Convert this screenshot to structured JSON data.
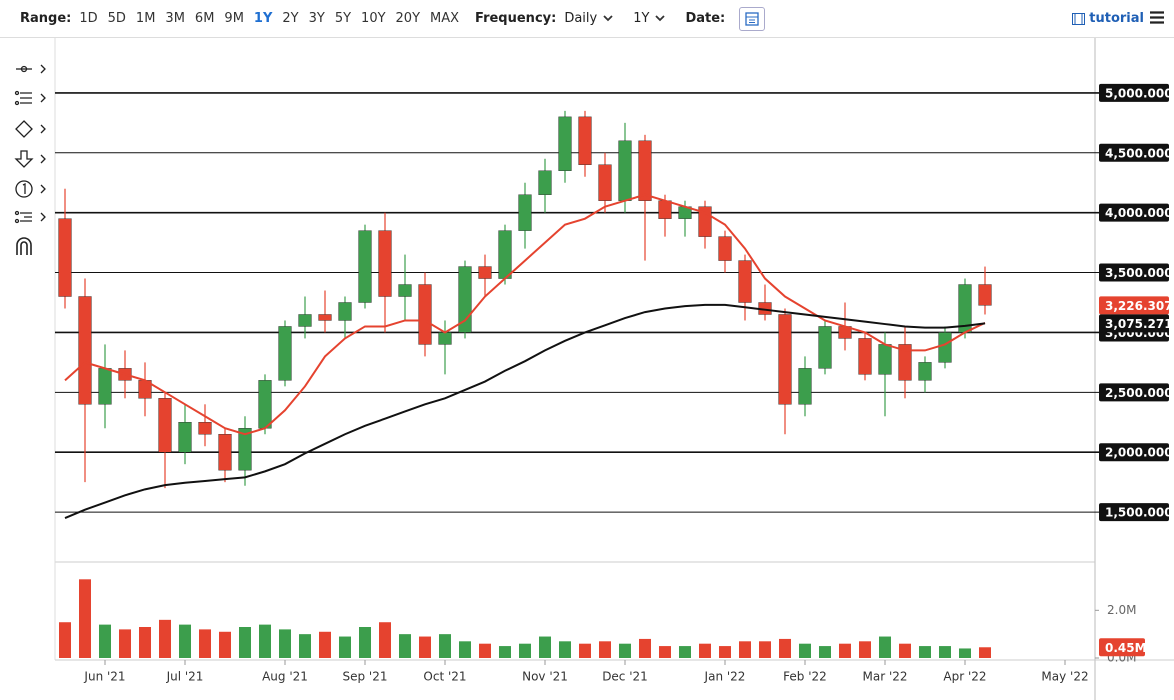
{
  "toolbar": {
    "range_label": "Range:",
    "ranges": [
      "1D",
      "5D",
      "1M",
      "3M",
      "6M",
      "9M",
      "1Y",
      "2Y",
      "3Y",
      "5Y",
      "10Y",
      "20Y",
      "MAX"
    ],
    "frequency_label": "Frequency:",
    "frequency": "Daily",
    "period": "1Y",
    "date_label": "Date:",
    "tutorial": "tutorial"
  },
  "chart_data": {
    "type": "candlestick",
    "categories": [
      null,
      null,
      "Jun '21",
      null,
      null,
      null,
      "Jul '21",
      null,
      null,
      null,
      null,
      "Aug '21",
      null,
      null,
      null,
      "Sep '21",
      null,
      null,
      null,
      "Oct '21",
      null,
      null,
      null,
      null,
      "Nov '21",
      null,
      null,
      null,
      "Dec '21",
      null,
      null,
      null,
      null,
      "Jan '22",
      null,
      null,
      null,
      "Feb '22",
      null,
      null,
      null,
      "Mar '22",
      null,
      null,
      null,
      "Apr '22",
      null,
      null,
      null,
      null,
      "May '22",
      null
    ],
    "open": [
      3950,
      3300,
      2400,
      2700,
      2600,
      2450,
      2000,
      2250,
      2150,
      1850,
      2200,
      2600,
      3050,
      3150,
      3100,
      3250,
      3850,
      3300,
      3400,
      2900,
      3000,
      3550,
      3450,
      3850,
      4150,
      4350,
      4800,
      4400,
      4100,
      4600,
      4100,
      3950,
      4050,
      3800,
      3600,
      3250,
      3150,
      2400,
      2700,
      3050,
      2950,
      2650,
      2900,
      2600,
      2750,
      3000,
      3400,
      null,
      null,
      null,
      null,
      null
    ],
    "high": [
      4200,
      3450,
      2900,
      2850,
      2750,
      2500,
      2400,
      2400,
      2200,
      2300,
      2650,
      3100,
      3300,
      3350,
      3300,
      3900,
      4000,
      3650,
      3500,
      3100,
      3600,
      3650,
      3900,
      4250,
      4450,
      4850,
      4850,
      4500,
      4750,
      4650,
      4150,
      4100,
      4100,
      3850,
      3650,
      3400,
      3200,
      2800,
      3100,
      3250,
      3000,
      3000,
      3050,
      2800,
      3050,
      3450,
      3550,
      null,
      null,
      null,
      null,
      null
    ],
    "low": [
      3200,
      1750,
      2200,
      2450,
      2300,
      1700,
      1900,
      2050,
      1750,
      1720,
      2150,
      2550,
      2950,
      3000,
      2950,
      3200,
      3000,
      3100,
      2800,
      2650,
      2950,
      3300,
      3400,
      3700,
      4000,
      4250,
      4300,
      4000,
      4000,
      3600,
      3800,
      3800,
      3700,
      3500,
      3100,
      3100,
      2150,
      2300,
      2650,
      2850,
      2600,
      2300,
      2450,
      2500,
      2700,
      2950,
      3150,
      null,
      null,
      null,
      null,
      null
    ],
    "close": [
      3300,
      2400,
      2700,
      2600,
      2450,
      2000,
      2250,
      2150,
      1850,
      2200,
      2600,
      3050,
      3150,
      3100,
      3250,
      3850,
      3300,
      3400,
      2900,
      3000,
      3550,
      3450,
      3850,
      4150,
      4350,
      4800,
      4400,
      4100,
      4600,
      4100,
      3950,
      4050,
      3800,
      3600,
      3250,
      3150,
      2400,
      2700,
      3050,
      2950,
      2650,
      2900,
      2600,
      2750,
      3000,
      3400,
      3226.307,
      null,
      null,
      null,
      null,
      null
    ],
    "up_color": "#3c9e4c",
    "down_color": "#e5432f",
    "overlays": [
      {
        "color": "#e5432f",
        "values": [
          2600,
          2750,
          2700,
          2650,
          2600,
          2500,
          2400,
          2300,
          2200,
          2150,
          2200,
          2350,
          2550,
          2800,
          2950,
          3050,
          3050,
          3100,
          3100,
          3000,
          3100,
          3300,
          3450,
          3600,
          3750,
          3900,
          3950,
          4050,
          4100,
          4150,
          4100,
          4050,
          4000,
          3900,
          3700,
          3450,
          3300,
          3200,
          3100,
          3050,
          3000,
          2900,
          2850,
          2850,
          2900,
          3000,
          3080,
          null,
          null,
          null,
          null,
          null
        ]
      },
      {
        "color": "#111111",
        "values": [
          1450,
          1520,
          1580,
          1640,
          1690,
          1725,
          1745,
          1760,
          1775,
          1790,
          1840,
          1900,
          1990,
          2070,
          2150,
          2220,
          2280,
          2340,
          2400,
          2450,
          2520,
          2590,
          2680,
          2760,
          2850,
          2930,
          3000,
          3060,
          3120,
          3170,
          3200,
          3220,
          3230,
          3230,
          3210,
          3190,
          3170,
          3150,
          3130,
          3110,
          3090,
          3070,
          3050,
          3040,
          3040,
          3055,
          3075.271,
          null,
          null,
          null,
          null,
          null
        ]
      }
    ],
    "ylim": [
      1100,
      5400
    ],
    "yticks": [
      {
        "value": 1500,
        "label": "1,500.000"
      },
      {
        "value": 2000,
        "label": "2,000.000"
      },
      {
        "value": 2500,
        "label": "2,500.000"
      },
      {
        "value": 3000,
        "label": "3,000.000"
      },
      {
        "value": 3500,
        "label": "3,500.000"
      },
      {
        "value": 4000,
        "label": "4,000.000"
      },
      {
        "value": 4500,
        "label": "4,500.000"
      },
      {
        "value": 5000,
        "label": "5,000.000"
      }
    ],
    "markers": [
      {
        "value": 3226.307,
        "label": "3,226.307",
        "color": "#e5432f"
      },
      {
        "value": 3075.271,
        "label": "3,075.271",
        "color": "#111111"
      }
    ],
    "volume": {
      "values": [
        1500000,
        3300000,
        1400000,
        1200000,
        1300000,
        1600000,
        1400000,
        1200000,
        1100000,
        1300000,
        1400000,
        1200000,
        1000000,
        1100000,
        900000,
        1300000,
        1500000,
        1000000,
        900000,
        1000000,
        700000,
        600000,
        500000,
        600000,
        900000,
        700000,
        600000,
        700000,
        600000,
        800000,
        500000,
        500000,
        600000,
        500000,
        700000,
        700000,
        800000,
        600000,
        500000,
        600000,
        700000,
        900000,
        600000,
        500000,
        500000,
        400000,
        450000,
        null,
        null,
        null,
        null,
        null
      ],
      "ylim": [
        0,
        3900000
      ],
      "yticks": [
        {
          "value": 2000000,
          "label": "2.0M"
        },
        {
          "value": 0,
          "label": "0.0M"
        }
      ],
      "marker": {
        "value": 450000,
        "label": "0.45M",
        "color": "#e5432f"
      }
    }
  }
}
